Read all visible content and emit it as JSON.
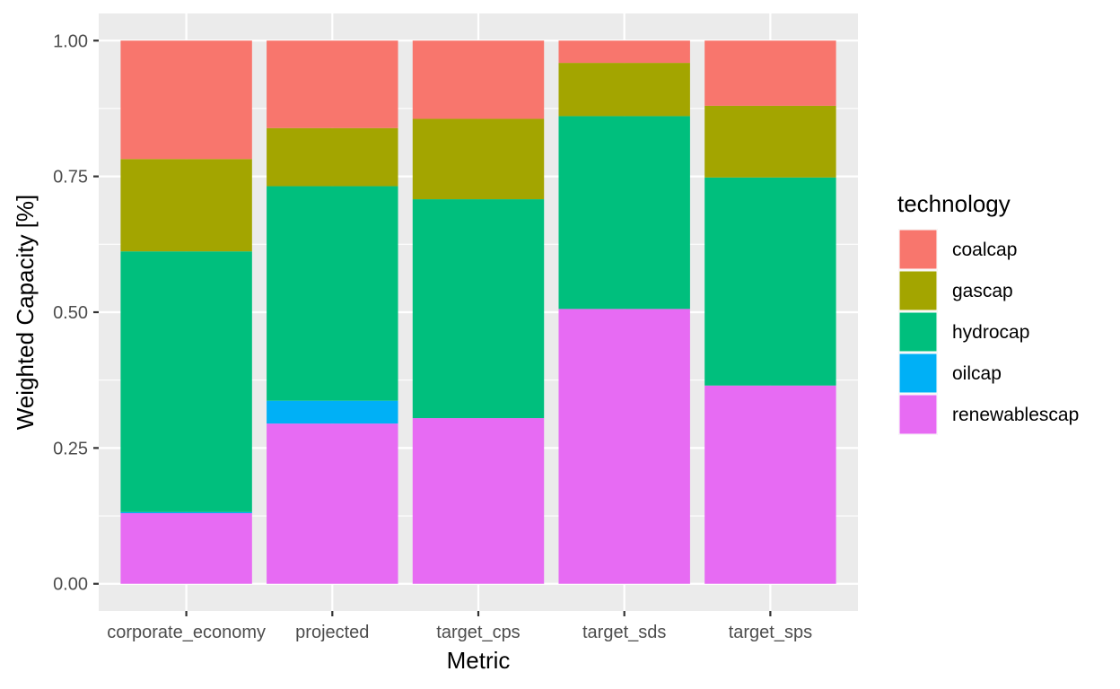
{
  "chart_data": {
    "type": "bar",
    "stacked": true,
    "categories": [
      "corporate_economy",
      "projected",
      "target_cps",
      "target_sds",
      "target_sps"
    ],
    "series": [
      {
        "name": "coalcap",
        "color": "#F8766D",
        "values": [
          0.218,
          0.161,
          0.144,
          0.041,
          0.12
        ]
      },
      {
        "name": "gascap",
        "color": "#A3A500",
        "values": [
          0.17,
          0.107,
          0.148,
          0.098,
          0.132
        ]
      },
      {
        "name": "hydrocap",
        "color": "#00BF7D",
        "values": [
          0.48,
          0.395,
          0.403,
          0.355,
          0.383
        ]
      },
      {
        "name": "oilcap",
        "color": "#00B0F6",
        "values": [
          0.002,
          0.042,
          0.0,
          0.0,
          0.0
        ]
      },
      {
        "name": "renewablescap",
        "color": "#E76BF3",
        "values": [
          0.13,
          0.295,
          0.305,
          0.506,
          0.365
        ]
      }
    ],
    "stack_order_bottom_to_top": [
      "renewablescap",
      "oilcap",
      "hydrocap",
      "gascap",
      "coalcap"
    ],
    "title": "",
    "xlabel": "Metric",
    "ylabel": "Weighted Capacity [%]",
    "ylim": [
      -0.05,
      1.05
    ],
    "yticks": [
      "0.00",
      "0.25",
      "0.50",
      "0.75",
      "1.00"
    ],
    "ytick_values": [
      0,
      0.25,
      0.5,
      0.75,
      1
    ],
    "grid": true,
    "panel_background": "#EBEBEB",
    "legend": {
      "title": "technology",
      "position": "right",
      "order": [
        "coalcap",
        "gascap",
        "hydrocap",
        "oilcap",
        "renewablescap"
      ]
    }
  }
}
